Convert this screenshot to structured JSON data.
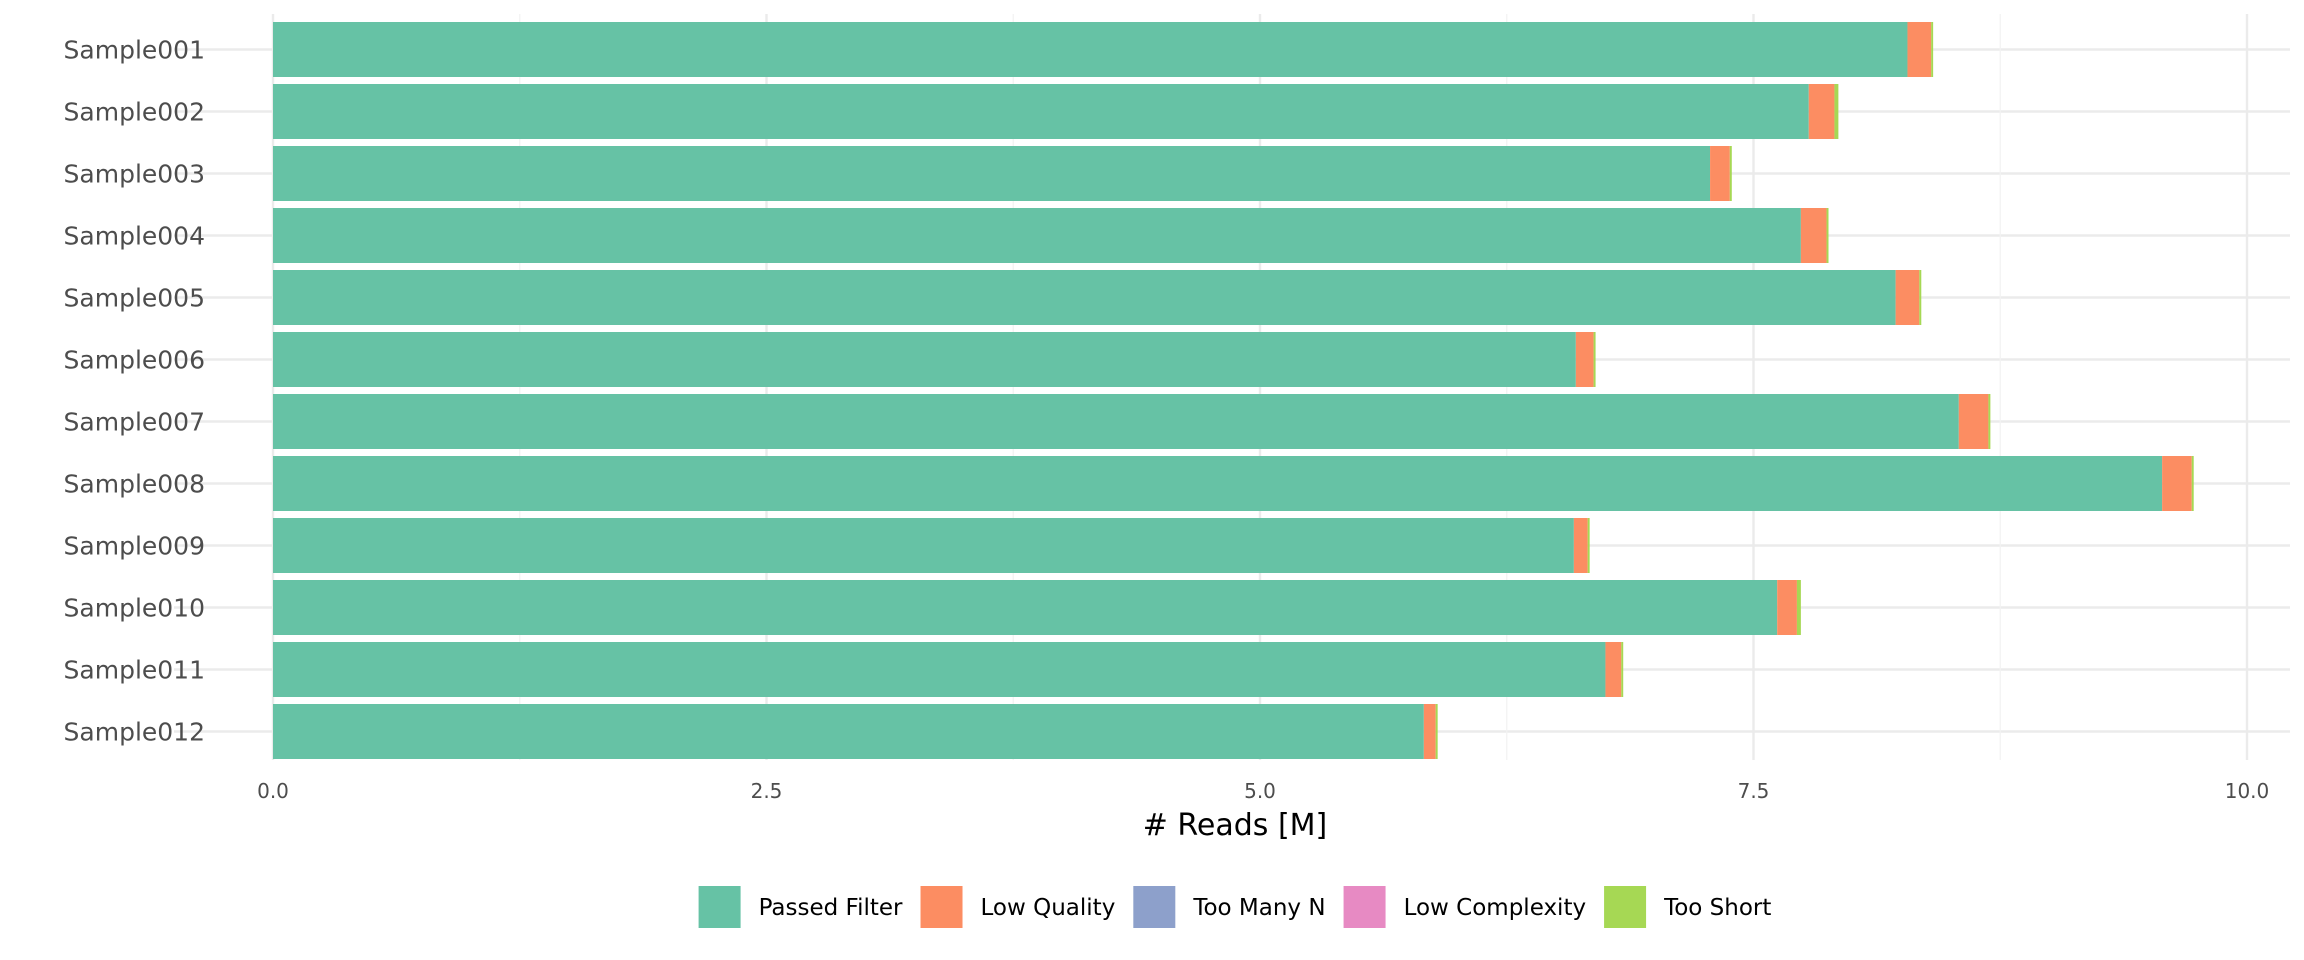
{
  "chart_data": {
    "type": "bar",
    "orientation": "horizontal",
    "stacked": true,
    "title": "",
    "xlabel": "# Reads [M]",
    "ylabel": "",
    "xlim": [
      0,
      10
    ],
    "x_ticks": [
      0.0,
      2.5,
      5.0,
      7.5,
      10.0
    ],
    "x_tick_labels": [
      "0.0",
      "2.5",
      "5.0",
      "7.5",
      "10.0"
    ],
    "grid": true,
    "legend_position": "bottom",
    "categories": [
      "Sample001",
      "Sample002",
      "Sample003",
      "Sample004",
      "Sample005",
      "Sample006",
      "Sample007",
      "Sample008",
      "Sample009",
      "Sample010",
      "Sample011",
      "Sample012"
    ],
    "series": [
      {
        "name": "Passed Filter",
        "color": "#66c2a5",
        "values": [
          8.28,
          7.78,
          7.28,
          7.74,
          8.22,
          6.6,
          8.54,
          9.57,
          6.59,
          7.62,
          6.75,
          5.83
        ]
      },
      {
        "name": "Low Quality",
        "color": "#fc8d62",
        "values": [
          0.12,
          0.13,
          0.1,
          0.13,
          0.12,
          0.09,
          0.15,
          0.15,
          0.07,
          0.1,
          0.08,
          0.06
        ]
      },
      {
        "name": "Too Many N",
        "color": "#8da0cb",
        "values": [
          0.0,
          0.0,
          0.0,
          0.0,
          0.0,
          0.0,
          0.0,
          0.0,
          0.0,
          0.0,
          0.0,
          0.0
        ]
      },
      {
        "name": "Low Complexity",
        "color": "#e78ac3",
        "values": [
          0.0,
          0.0,
          0.0,
          0.0,
          0.0,
          0.0,
          0.0,
          0.0,
          0.0,
          0.0,
          0.0,
          0.0
        ]
      },
      {
        "name": "Too Short",
        "color": "#a6d854",
        "values": [
          0.01,
          0.02,
          0.01,
          0.01,
          0.01,
          0.01,
          0.01,
          0.01,
          0.01,
          0.02,
          0.01,
          0.01
        ]
      }
    ]
  }
}
